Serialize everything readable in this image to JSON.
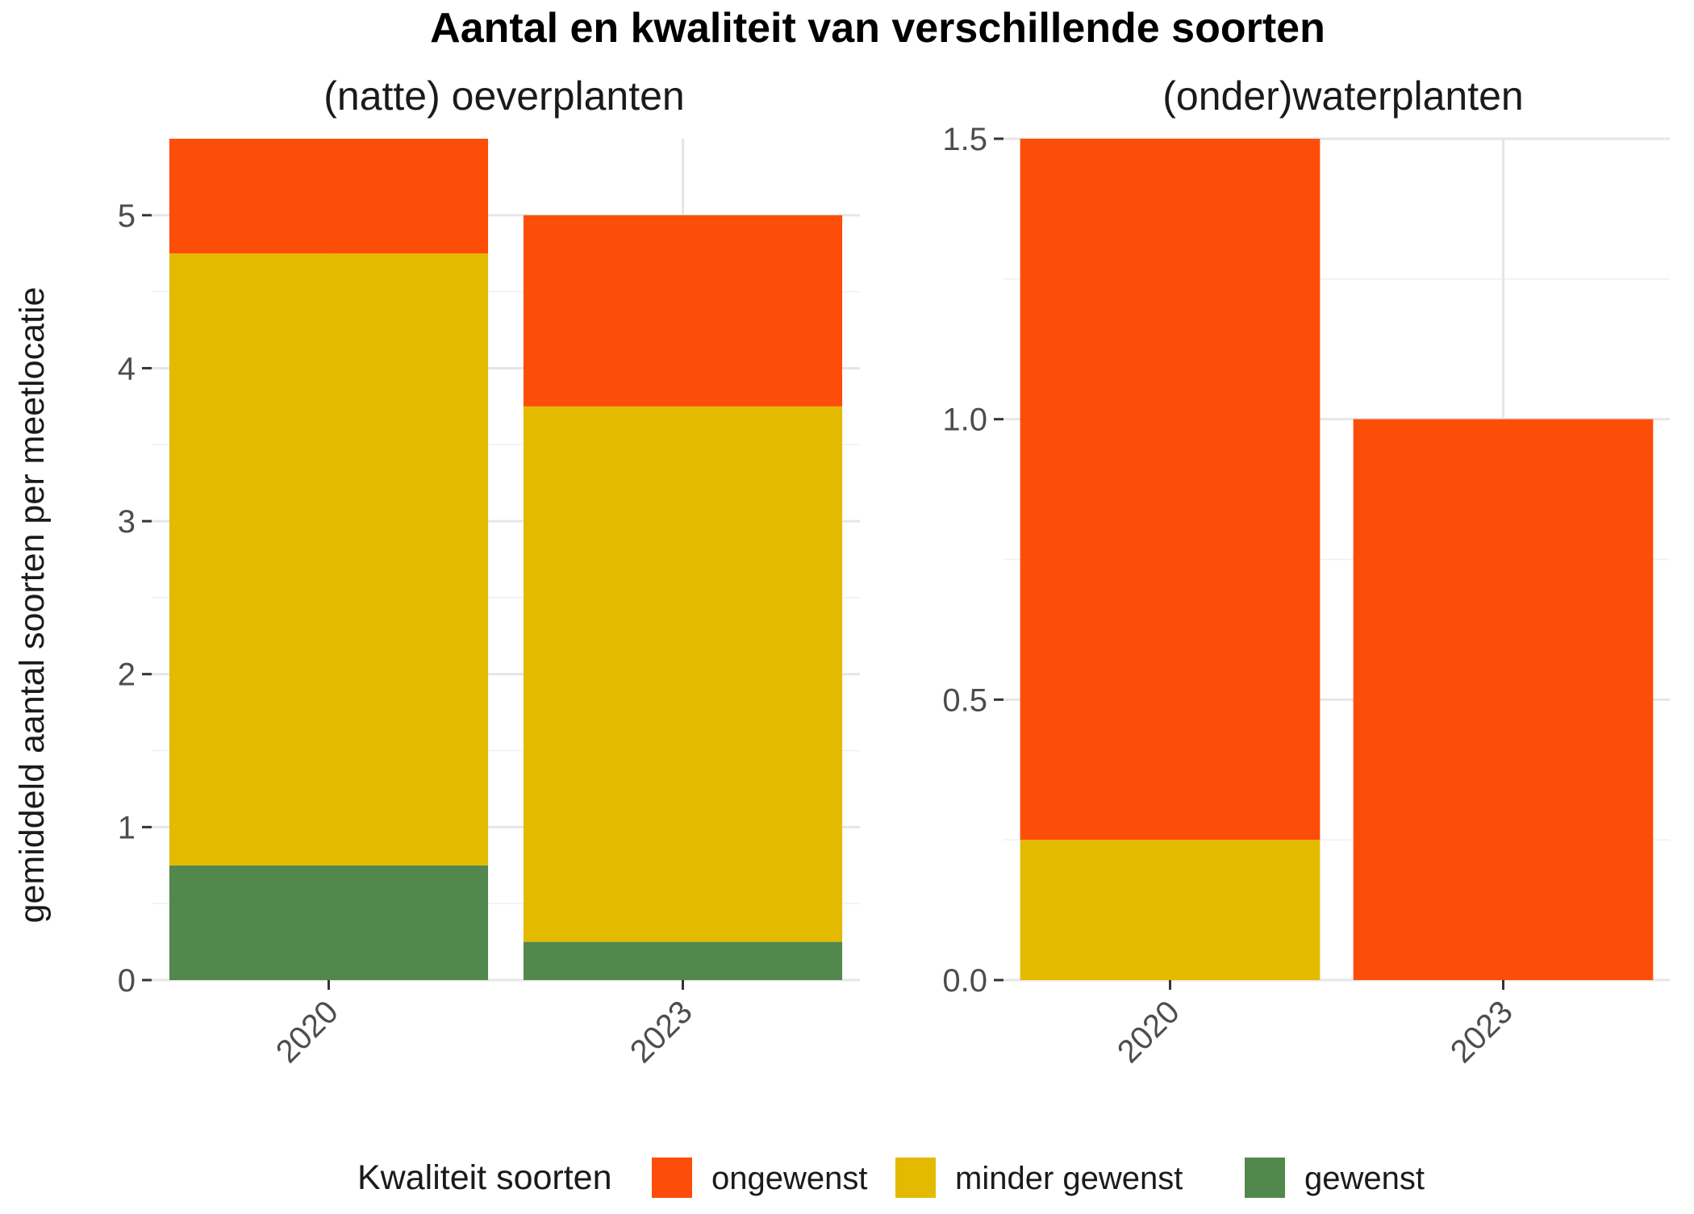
{
  "chart_data": {
    "type": "bar",
    "stacked": true,
    "title": "Aantal en kwaliteit van verschillende soorten",
    "ylabel": "gemiddeld aantal soorten per meetlocatie",
    "xlabel": "",
    "grid": true,
    "legend": {
      "title": "Kwaliteit soorten",
      "position": "bottom",
      "entries": [
        {
          "name": "ongewenst",
          "color": "#FC4E08"
        },
        {
          "name": "minder gewenst",
          "color": "#E4BA00"
        },
        {
          "name": "gewenst",
          "color": "#53884D"
        }
      ]
    },
    "panels": [
      {
        "title": "(natte) oeverplanten",
        "categories": [
          "2020",
          "2023"
        ],
        "ylim": [
          0,
          5.5
        ],
        "yticks": [
          0,
          1,
          2,
          3,
          4,
          5
        ],
        "ytick_labels": [
          "0",
          "1",
          "2",
          "3",
          "4",
          "5"
        ],
        "series": [
          {
            "name": "gewenst",
            "values": [
              0.75,
              0.25
            ]
          },
          {
            "name": "minder gewenst",
            "values": [
              4.0,
              3.5
            ]
          },
          {
            "name": "ongewenst",
            "values": [
              0.75,
              1.25
            ]
          }
        ]
      },
      {
        "title": "(onder)waterplanten",
        "categories": [
          "2020",
          "2023"
        ],
        "ylim": [
          0,
          1.5
        ],
        "yticks": [
          0,
          0.5,
          1.0,
          1.5
        ],
        "ytick_labels": [
          "0.0",
          "0.5",
          "1.0",
          "1.5"
        ],
        "series": [
          {
            "name": "gewenst",
            "values": [
              0,
              0
            ]
          },
          {
            "name": "minder gewenst",
            "values": [
              0.25,
              0
            ]
          },
          {
            "name": "ongewenst",
            "values": [
              1.25,
              1.0
            ]
          }
        ]
      }
    ]
  }
}
